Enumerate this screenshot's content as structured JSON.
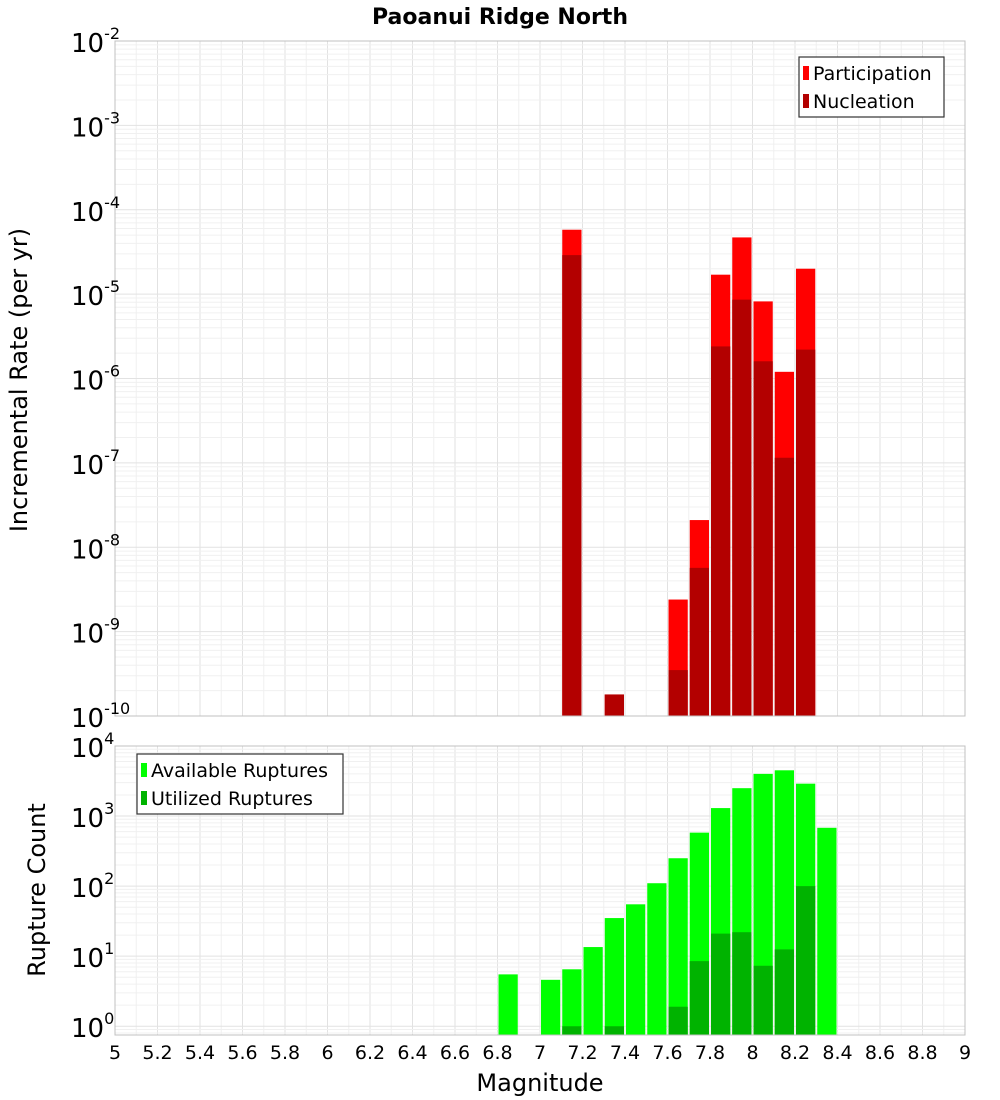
{
  "chart_data": [
    {
      "type": "bar",
      "title": "Paoanui Ridge North",
      "xlabel": "",
      "ylabel": "Incremental Rate (per yr)",
      "y_scale": "log",
      "ylim": [
        1e-10,
        0.01
      ],
      "xlim": [
        5,
        9
      ],
      "bin_width": 0.1,
      "y_ticks": [
        {
          "base": "10",
          "exp": "-10"
        },
        {
          "base": "10",
          "exp": "-9"
        },
        {
          "base": "10",
          "exp": "-8"
        },
        {
          "base": "10",
          "exp": "-7"
        },
        {
          "base": "10",
          "exp": "-6"
        },
        {
          "base": "10",
          "exp": "-5"
        },
        {
          "base": "10",
          "exp": "-4"
        },
        {
          "base": "10",
          "exp": "-3"
        },
        {
          "base": "10",
          "exp": "-2"
        }
      ],
      "grid": true,
      "legend_position": "top-right",
      "series": [
        {
          "name": "Participation",
          "color": "#ff0000",
          "x": [
            7.15,
            7.35,
            7.65,
            7.75,
            7.85,
            7.95,
            8.05,
            8.15,
            8.25
          ],
          "values": [
            5.8e-05,
            1.8e-10,
            2.4e-09,
            2.1e-08,
            1.7e-05,
            4.7e-05,
            8.2e-06,
            1.2e-06,
            2e-05
          ]
        },
        {
          "name": "Nucleation",
          "color": "#b30000",
          "x": [
            7.15,
            7.35,
            7.65,
            7.75,
            7.85,
            7.95,
            8.05,
            8.15,
            8.25
          ],
          "values": [
            2.9e-05,
            1.8e-10,
            3.5e-10,
            5.7e-09,
            2.4e-06,
            8.6e-06,
            1.6e-06,
            1.15e-07,
            2.2e-06
          ]
        }
      ]
    },
    {
      "type": "bar",
      "title": "",
      "xlabel": "Magnitude",
      "ylabel": "Rupture Count",
      "y_scale": "log",
      "ylim": [
        0.75,
        10000
      ],
      "xlim": [
        5,
        9
      ],
      "bin_width": 0.1,
      "x_ticks": [
        "5",
        "5.2",
        "5.4",
        "5.6",
        "5.8",
        "6",
        "6.2",
        "6.4",
        "6.6",
        "6.8",
        "7",
        "7.2",
        "7.4",
        "7.6",
        "7.8",
        "8",
        "8.2",
        "8.4",
        "8.6",
        "8.8",
        "9"
      ],
      "y_ticks": [
        {
          "base": "10",
          "exp": "0"
        },
        {
          "base": "10",
          "exp": "1"
        },
        {
          "base": "10",
          "exp": "2"
        },
        {
          "base": "10",
          "exp": "3"
        },
        {
          "base": "10",
          "exp": "4"
        }
      ],
      "grid": true,
      "legend_position": "top-left",
      "series": [
        {
          "name": "Available Ruptures",
          "color": "#00ff00",
          "x": [
            6.85,
            7.05,
            7.15,
            7.25,
            7.35,
            7.45,
            7.55,
            7.65,
            7.75,
            7.85,
            7.95,
            8.05,
            8.15,
            8.25,
            8.35
          ],
          "values": [
            5.5,
            4.6,
            6.5,
            13.5,
            35,
            55,
            110,
            250,
            580,
            1300,
            2500,
            4000,
            4500,
            2900,
            680
          ]
        },
        {
          "name": "Utilized Ruptures",
          "color": "#00b300",
          "x": [
            7.15,
            7.35,
            7.65,
            7.75,
            7.85,
            7.95,
            8.05,
            8.15,
            8.25
          ],
          "values": [
            1,
            1,
            1.9,
            8.5,
            21,
            22,
            7.3,
            12.5,
            100
          ]
        }
      ]
    }
  ]
}
